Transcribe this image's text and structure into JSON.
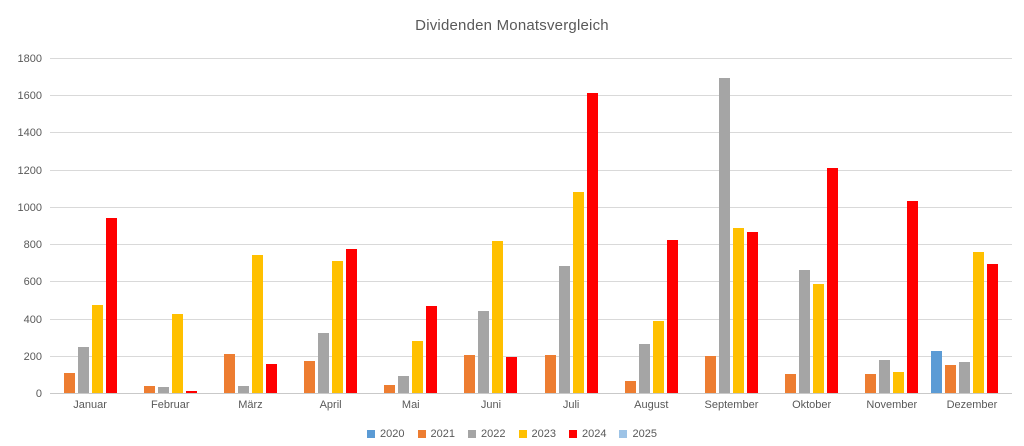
{
  "chart_data": {
    "type": "bar",
    "title": "Dividenden Monatsvergleich",
    "categories": [
      "Januar",
      "Februar",
      "März",
      "April",
      "Mai",
      "Juni",
      "Juli",
      "August",
      "September",
      "Oktober",
      "November",
      "Dezember"
    ],
    "series": [
      {
        "name": "2020",
        "color": "#5B9BD5",
        "values": [
          0,
          0,
          0,
          0,
          0,
          0,
          0,
          0,
          0,
          0,
          0,
          225
        ]
      },
      {
        "name": "2021",
        "color": "#ED7D31",
        "values": [
          110,
          40,
          210,
          170,
          45,
          205,
          205,
          65,
          200,
          100,
          100,
          150
        ]
      },
      {
        "name": "2022",
        "color": "#A5A5A5",
        "values": [
          245,
          30,
          40,
          320,
          90,
          440,
          680,
          265,
          1690,
          660,
          175,
          165
        ]
      },
      {
        "name": "2023",
        "color": "#FFC000",
        "values": [
          475,
          425,
          740,
          710,
          280,
          815,
          1080,
          385,
          885,
          585,
          115,
          760
        ]
      },
      {
        "name": "2024",
        "color": "#FF0000",
        "values": [
          940,
          10,
          155,
          775,
          470,
          195,
          1610,
          820,
          865,
          1210,
          1030,
          695
        ]
      },
      {
        "name": "2025",
        "color": "#9DC3E6",
        "values": [
          0,
          0,
          0,
          0,
          0,
          0,
          0,
          0,
          0,
          0,
          0,
          0
        ]
      }
    ],
    "xlabel": "",
    "ylabel": "",
    "ylim": [
      0,
      1800
    ],
    "ytick_step": 200,
    "grid": true,
    "legend_position": "bottom",
    "text_color": "#595959",
    "gridline_color": "#D9D9D9"
  }
}
